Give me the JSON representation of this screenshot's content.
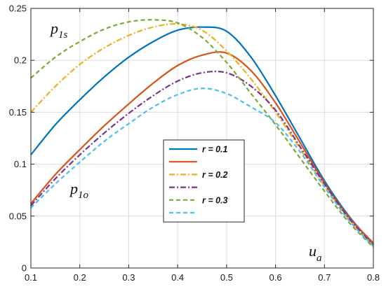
{
  "chart_data": {
    "type": "line",
    "xlim": [
      0.1,
      0.8
    ],
    "ylim": [
      0,
      0.25
    ],
    "x_ticks": [
      "0.1",
      "0.2",
      "0.3",
      "0.4",
      "0.5",
      "0.6",
      "0.7",
      "0.8"
    ],
    "y_ticks": [
      "0",
      "0.05",
      "0.1",
      "0.15",
      "0.2",
      "0.25"
    ],
    "grid": true,
    "legend_position": "center",
    "annotations": [
      {
        "base": "p",
        "sub": "1s"
      },
      {
        "base": "p",
        "sub": "1o"
      },
      {
        "base": "u",
        "sub": "a"
      }
    ],
    "series": [
      {
        "label": "r = 0.1",
        "color": "#0072BD",
        "dash": "solid",
        "x": [
          0.1,
          0.15,
          0.2,
          0.25,
          0.3,
          0.35,
          0.4,
          0.45,
          0.5,
          0.55,
          0.6,
          0.65,
          0.7,
          0.75,
          0.8
        ],
        "y": [
          0.109,
          0.138,
          0.162,
          0.184,
          0.203,
          0.218,
          0.229,
          0.232,
          0.228,
          0.203,
          0.166,
          0.125,
          0.084,
          0.05,
          0.023
        ]
      },
      {
        "label": "",
        "color": "#D95319",
        "dash": "solid",
        "x": [
          0.1,
          0.15,
          0.2,
          0.25,
          0.3,
          0.35,
          0.4,
          0.45,
          0.5,
          0.55,
          0.6,
          0.65,
          0.7,
          0.75,
          0.8
        ],
        "y": [
          0.062,
          0.09,
          0.114,
          0.137,
          0.158,
          0.178,
          0.195,
          0.205,
          0.207,
          0.19,
          0.159,
          0.121,
          0.082,
          0.049,
          0.024
        ]
      },
      {
        "label": "r = 0.2",
        "color": "#EDB120",
        "dash": "dashdot",
        "x": [
          0.1,
          0.15,
          0.2,
          0.25,
          0.3,
          0.35,
          0.4,
          0.45,
          0.5,
          0.55,
          0.6,
          0.65,
          0.7,
          0.75,
          0.8
        ],
        "y": [
          0.15,
          0.175,
          0.196,
          0.212,
          0.224,
          0.232,
          0.235,
          0.229,
          0.209,
          0.182,
          0.15,
          0.115,
          0.079,
          0.047,
          0.021
        ]
      },
      {
        "label": "",
        "color": "#7E2F8E",
        "dash": "dashdot",
        "x": [
          0.1,
          0.15,
          0.2,
          0.25,
          0.3,
          0.35,
          0.4,
          0.45,
          0.5,
          0.55,
          0.6,
          0.65,
          0.7,
          0.75,
          0.8
        ],
        "y": [
          0.06,
          0.086,
          0.109,
          0.13,
          0.149,
          0.166,
          0.18,
          0.188,
          0.188,
          0.175,
          0.152,
          0.117,
          0.081,
          0.048,
          0.022
        ]
      },
      {
        "label": "r = 0.3",
        "color": "#77AC30",
        "dash": "dashed",
        "x": [
          0.1,
          0.15,
          0.2,
          0.25,
          0.3,
          0.35,
          0.4,
          0.45,
          0.5,
          0.55,
          0.6,
          0.65,
          0.7,
          0.75,
          0.8
        ],
        "y": [
          0.183,
          0.203,
          0.218,
          0.23,
          0.237,
          0.239,
          0.236,
          0.222,
          0.198,
          0.168,
          0.138,
          0.106,
          0.074,
          0.044,
          0.02
        ]
      },
      {
        "label": "",
        "color": "#4DBEEE",
        "dash": "dashed",
        "x": [
          0.1,
          0.15,
          0.2,
          0.25,
          0.3,
          0.35,
          0.4,
          0.45,
          0.5,
          0.55,
          0.6,
          0.65,
          0.7,
          0.75,
          0.8
        ],
        "y": [
          0.058,
          0.081,
          0.102,
          0.122,
          0.139,
          0.155,
          0.167,
          0.173,
          0.168,
          0.155,
          0.14,
          0.112,
          0.078,
          0.046,
          0.021
        ]
      }
    ]
  }
}
